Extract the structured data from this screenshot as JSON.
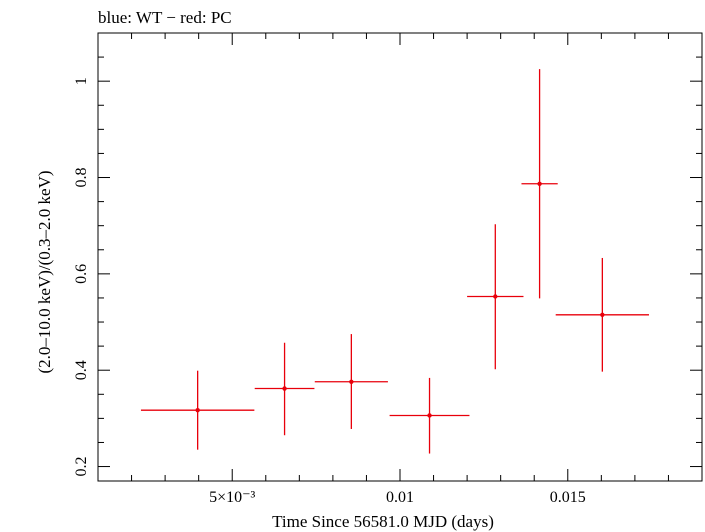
{
  "chart_data": {
    "type": "scatter",
    "title": "blue: WT − red: PC",
    "xlabel": "Time Since 56581.0 MJD (days)",
    "ylabel": "(2.0–10.0 keV)/(0.3–2.0 keV)",
    "xlim": [
      0.001,
      0.019
    ],
    "ylim": [
      0.17,
      1.1
    ],
    "x_ticks": [
      {
        "value": 0.005,
        "label": "5×10⁻³"
      },
      {
        "value": 0.01,
        "label": "0.01"
      },
      {
        "value": 0.015,
        "label": "0.015"
      }
    ],
    "y_ticks": [
      {
        "value": 0.2,
        "label": "0.2"
      },
      {
        "value": 0.4,
        "label": "0.4"
      },
      {
        "value": 0.6,
        "label": "0.6"
      },
      {
        "value": 0.8,
        "label": "0.8"
      },
      {
        "value": 1.0,
        "label": "1"
      }
    ],
    "grid": false,
    "series": [
      {
        "color": "#e8000b",
        "points": [
          {
            "x": 0.00397,
            "xerr_low": 0.00169,
            "xerr_high": 0.00169,
            "y": 0.317,
            "yerr_low": 0.082,
            "yerr_high": 0.082
          },
          {
            "x": 0.00656,
            "xerr_low": 0.00089,
            "xerr_high": 0.00089,
            "y": 0.362,
            "yerr_low": 0.097,
            "yerr_high": 0.095
          },
          {
            "x": 0.00855,
            "xerr_low": 0.00109,
            "xerr_high": 0.00109,
            "y": 0.376,
            "yerr_low": 0.098,
            "yerr_high": 0.099
          },
          {
            "x": 0.01088,
            "xerr_low": 0.00119,
            "xerr_high": 0.00119,
            "y": 0.306,
            "yerr_low": 0.079,
            "yerr_high": 0.078
          },
          {
            "x": 0.01284,
            "xerr_low": 0.00084,
            "xerr_high": 0.00084,
            "y": 0.553,
            "yerr_low": 0.151,
            "yerr_high": 0.15
          },
          {
            "x": 0.01416,
            "xerr_low": 0.00054,
            "xerr_high": 0.00054,
            "y": 0.787,
            "yerr_low": 0.238,
            "yerr_high": 0.238
          },
          {
            "x": 0.01603,
            "xerr_low": 0.00139,
            "xerr_high": 0.00139,
            "y": 0.515,
            "yerr_low": 0.118,
            "yerr_high": 0.118
          }
        ]
      }
    ]
  }
}
